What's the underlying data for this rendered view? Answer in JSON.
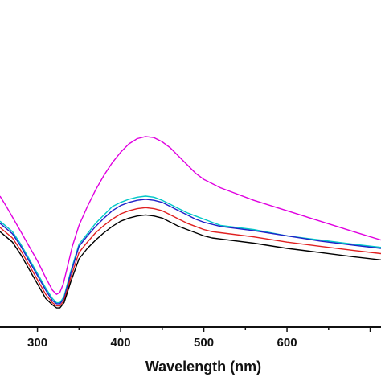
{
  "chart_data": {
    "type": "line",
    "title": "",
    "xlabel": "Wavelength (nm)",
    "ylabel": "",
    "xlim": [
      255,
      713
    ],
    "ylim": [
      0,
      1
    ],
    "xticks": [
      300,
      400,
      500,
      600
    ],
    "grid": false,
    "legend": "none",
    "series": [
      {
        "color": "#e000e0",
        "x": [
          255,
          262,
          270,
          280,
          290,
          300,
          310,
          318,
          323,
          327,
          331,
          336,
          342,
          350,
          360,
          370,
          380,
          390,
          400,
          410,
          420,
          430,
          440,
          450,
          460,
          470,
          480,
          490,
          500,
          510,
          520,
          530,
          560,
          600,
          640,
          680,
          713
        ],
        "y": [
          0.6,
          0.555,
          0.5,
          0.43,
          0.36,
          0.29,
          0.21,
          0.15,
          0.13,
          0.14,
          0.18,
          0.26,
          0.36,
          0.46,
          0.55,
          0.63,
          0.7,
          0.76,
          0.81,
          0.85,
          0.875,
          0.885,
          0.88,
          0.86,
          0.83,
          0.79,
          0.75,
          0.71,
          0.68,
          0.66,
          0.64,
          0.625,
          0.58,
          0.53,
          0.48,
          0.43,
          0.39
        ]
      },
      {
        "color": "#00c8c8",
        "x": [
          255,
          270,
          280,
          290,
          300,
          310,
          318,
          323,
          327,
          332,
          340,
          350,
          360,
          370,
          380,
          390,
          400,
          410,
          420,
          430,
          440,
          450,
          460,
          470,
          480,
          490,
          500,
          510,
          520,
          560,
          600,
          640,
          680,
          713
        ],
        "y": [
          0.48,
          0.43,
          0.37,
          0.3,
          0.23,
          0.16,
          0.11,
          0.09,
          0.09,
          0.12,
          0.24,
          0.37,
          0.42,
          0.47,
          0.51,
          0.55,
          0.57,
          0.585,
          0.595,
          0.6,
          0.595,
          0.58,
          0.56,
          0.54,
          0.52,
          0.505,
          0.49,
          0.475,
          0.46,
          0.44,
          0.41,
          0.39,
          0.37,
          0.355
        ]
      },
      {
        "color": "#2020c8",
        "x": [
          255,
          270,
          280,
          290,
          300,
          310,
          318,
          323,
          327,
          332,
          340,
          350,
          360,
          370,
          380,
          390,
          400,
          410,
          420,
          430,
          440,
          450,
          460,
          470,
          480,
          490,
          500,
          510,
          520,
          560,
          600,
          640,
          680,
          713
        ],
        "y": [
          0.47,
          0.42,
          0.36,
          0.29,
          0.22,
          0.15,
          0.1,
          0.085,
          0.085,
          0.11,
          0.23,
          0.36,
          0.41,
          0.455,
          0.495,
          0.53,
          0.555,
          0.57,
          0.58,
          0.585,
          0.58,
          0.57,
          0.55,
          0.53,
          0.51,
          0.49,
          0.475,
          0.465,
          0.455,
          0.435,
          0.41,
          0.385,
          0.365,
          0.35
        ]
      },
      {
        "color": "#e02020",
        "x": [
          255,
          270,
          280,
          290,
          300,
          310,
          318,
          323,
          327,
          332,
          340,
          350,
          360,
          370,
          380,
          390,
          400,
          410,
          420,
          430,
          440,
          450,
          460,
          470,
          480,
          490,
          500,
          510,
          520,
          560,
          600,
          640,
          680,
          713
        ],
        "y": [
          0.45,
          0.4,
          0.34,
          0.27,
          0.2,
          0.13,
          0.09,
          0.075,
          0.075,
          0.1,
          0.21,
          0.33,
          0.38,
          0.425,
          0.46,
          0.49,
          0.515,
          0.53,
          0.54,
          0.545,
          0.54,
          0.53,
          0.51,
          0.49,
          0.47,
          0.455,
          0.44,
          0.43,
          0.425,
          0.405,
          0.38,
          0.36,
          0.34,
          0.325
        ]
      },
      {
        "color": "#000000",
        "x": [
          255,
          270,
          280,
          290,
          300,
          310,
          318,
          323,
          327,
          332,
          340,
          350,
          360,
          370,
          380,
          390,
          400,
          410,
          420,
          430,
          440,
          450,
          460,
          470,
          480,
          490,
          500,
          510,
          520,
          560,
          600,
          640,
          680,
          713
        ],
        "y": [
          0.43,
          0.38,
          0.32,
          0.25,
          0.18,
          0.11,
          0.08,
          0.065,
          0.065,
          0.09,
          0.19,
          0.3,
          0.35,
          0.39,
          0.425,
          0.455,
          0.48,
          0.495,
          0.505,
          0.51,
          0.505,
          0.495,
          0.475,
          0.455,
          0.44,
          0.425,
          0.41,
          0.4,
          0.395,
          0.375,
          0.35,
          0.33,
          0.31,
          0.295
        ]
      }
    ]
  }
}
